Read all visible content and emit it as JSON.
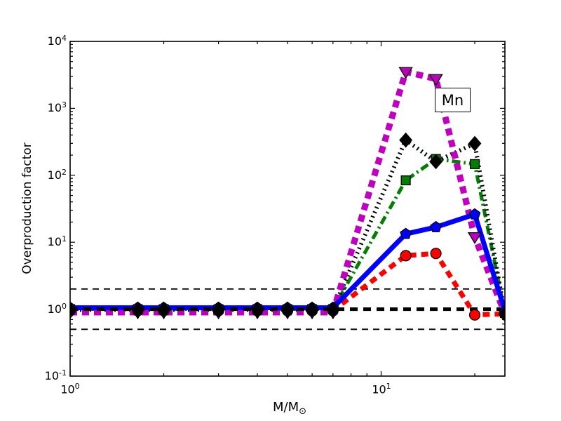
{
  "chart_data": {
    "type": "line",
    "title": "",
    "xlabel_main": "M/M",
    "xlabel_sub": "⊙",
    "ylabel": "Overproduction factor",
    "annotation": "Mn",
    "xscale": "log",
    "yscale": "log",
    "xlim": [
      1,
      25
    ],
    "ylim": [
      0.1,
      10000
    ],
    "grid": false,
    "legend": "none",
    "x_tick_exponents": [
      0,
      1
    ],
    "y_tick_exponents": [
      -1,
      0,
      1,
      2,
      3,
      4
    ],
    "x": [
      1,
      1.65,
      2,
      3,
      4,
      5,
      6,
      7,
      12,
      15,
      20,
      25
    ],
    "series": [
      {
        "name": "red-dashed-circles",
        "color": "#ff0000",
        "linestyle": "dashed",
        "dash": "10 7",
        "linewidth": 7,
        "marker": "circle",
        "marker_size": 8,
        "values": [
          0.95,
          0.95,
          0.95,
          0.95,
          0.95,
          0.95,
          0.95,
          0.95,
          6.3,
          6.8,
          0.82,
          0.85
        ]
      },
      {
        "name": "green-dashdot-squares",
        "color": "#007f00",
        "linestyle": "dashdot",
        "dash": "12 5 2.5 5",
        "linewidth": 5,
        "marker": "square",
        "marker_size": 8,
        "values": [
          1.0,
          1.0,
          1.0,
          1.0,
          1.0,
          1.0,
          1.0,
          1.0,
          84,
          175,
          147,
          0.88
        ]
      },
      {
        "name": "black-dotted-diamonds",
        "color": "#000000",
        "linestyle": "dotted",
        "dash": "2 5",
        "linewidth": 6,
        "marker": "diamond",
        "marker_size": 9,
        "values": [
          0.98,
          0.98,
          0.98,
          0.98,
          0.98,
          0.98,
          0.98,
          0.98,
          336,
          160,
          298,
          0.84
        ]
      },
      {
        "name": "magenta-dashed-triangles",
        "color": "#bf00bf",
        "linestyle": "dashed",
        "dash": "10 7",
        "linewidth": 9,
        "marker": "triangle-down",
        "marker_size": 9,
        "values": [
          0.9,
          0.9,
          0.9,
          0.9,
          0.9,
          0.9,
          0.9,
          0.9,
          3520,
          2760,
          12,
          0.85
        ]
      },
      {
        "name": "blue-solid-pentagons",
        "color": "#0000ff",
        "linestyle": "solid",
        "dash": "",
        "linewidth": 7,
        "marker": "pentagon",
        "marker_size": 8,
        "values": [
          1.05,
          1.05,
          1.05,
          1.05,
          1.05,
          1.05,
          1.05,
          1.05,
          13.3,
          16.8,
          26,
          0.95
        ]
      }
    ],
    "reference_lines": [
      {
        "y": 2,
        "dash": "9 7",
        "width": 1.8,
        "color": "#000000"
      },
      {
        "y": 0.5,
        "dash": "9 7",
        "width": 1.8,
        "color": "#000000"
      },
      {
        "y": 1,
        "dash": "11 8",
        "width": 5,
        "color": "#000000"
      }
    ]
  }
}
